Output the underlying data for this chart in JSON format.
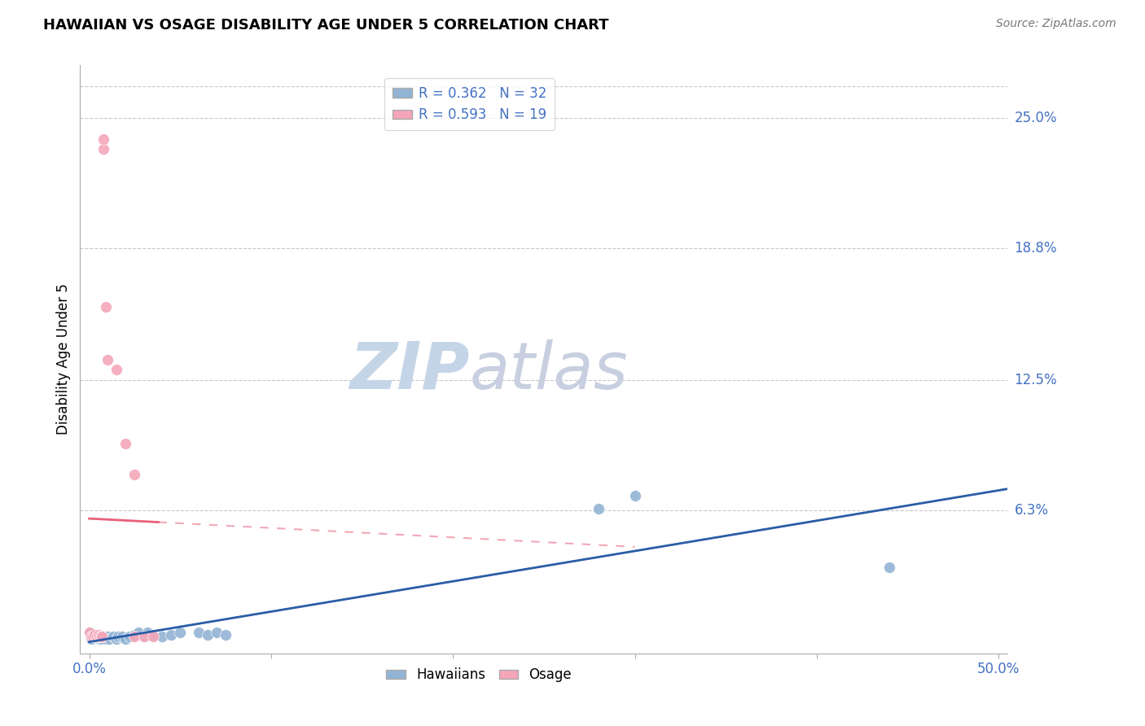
{
  "title": "HAWAIIAN VS OSAGE DISABILITY AGE UNDER 5 CORRELATION CHART",
  "source": "Source: ZipAtlas.com",
  "ylabel_label": "Disability Age Under 5",
  "x_tick_positions": [
    0.0,
    0.1,
    0.2,
    0.3,
    0.4,
    0.5
  ],
  "x_tick_labels": [
    "0.0%",
    "",
    "",
    "",
    "",
    "50.0%"
  ],
  "y_tick_labels_right": [
    "25.0%",
    "18.8%",
    "12.5%",
    "6.3%"
  ],
  "y_tick_values_right": [
    0.25,
    0.188,
    0.125,
    0.063
  ],
  "xlim": [
    -0.005,
    0.505
  ],
  "ylim": [
    -0.005,
    0.275
  ],
  "hawaiians_x": [
    0.0,
    0.001,
    0.002,
    0.003,
    0.005,
    0.006,
    0.007,
    0.008,
    0.009,
    0.01,
    0.011,
    0.013,
    0.015,
    0.016,
    0.018,
    0.02,
    0.022,
    0.025,
    0.027,
    0.03,
    0.032,
    0.035,
    0.04,
    0.045,
    0.05,
    0.06,
    0.065,
    0.07,
    0.075,
    0.28,
    0.3,
    0.44
  ],
  "hawaiians_y": [
    0.005,
    0.002,
    0.003,
    0.003,
    0.002,
    0.002,
    0.002,
    0.003,
    0.002,
    0.003,
    0.002,
    0.003,
    0.002,
    0.003,
    0.003,
    0.002,
    0.003,
    0.004,
    0.005,
    0.003,
    0.005,
    0.004,
    0.003,
    0.004,
    0.005,
    0.005,
    0.004,
    0.005,
    0.004,
    0.064,
    0.07,
    0.036
  ],
  "osage_x": [
    0.0,
    0.001,
    0.002,
    0.003,
    0.004,
    0.005,
    0.006,
    0.007,
    0.007,
    0.008,
    0.008,
    0.009,
    0.01,
    0.015,
    0.02,
    0.025,
    0.025,
    0.03,
    0.035
  ],
  "osage_y": [
    0.005,
    0.003,
    0.003,
    0.004,
    0.003,
    0.004,
    0.003,
    0.003,
    0.003,
    0.235,
    0.24,
    0.16,
    0.135,
    0.13,
    0.095,
    0.003,
    0.08,
    0.003,
    0.003
  ],
  "hawaiians_R": 0.362,
  "hawaiians_N": 32,
  "osage_R": 0.593,
  "osage_N": 19,
  "blue_color": "#92b4d4",
  "pink_color": "#f4a6b8",
  "blue_line_color": "#2a5ca8",
  "pink_line_color": "#e8607a",
  "background_color": "#ffffff",
  "grid_color": "#c8c8c8",
  "watermark_zip_color": "#c5d5e8",
  "watermark_atlas_color": "#c8cfe0"
}
